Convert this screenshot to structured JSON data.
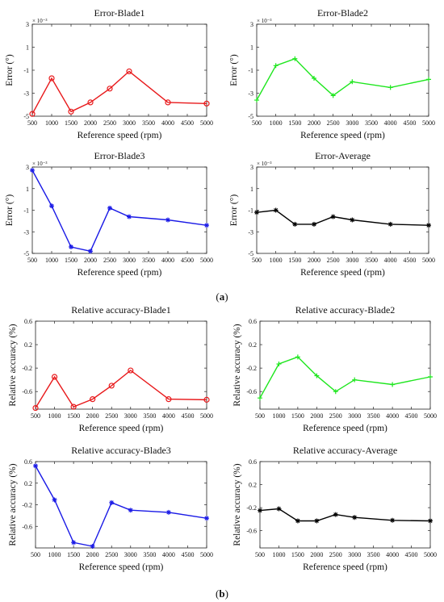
{
  "figure": {
    "group_a_label": {
      "open": "(",
      "letter": "a",
      "close": ")"
    },
    "group_b_label": {
      "open": "(",
      "letter": "b",
      "close": ")"
    }
  },
  "chart_data": [
    {
      "type": "line",
      "group": "a",
      "title": "Error-Blade1",
      "xlabel": "Reference speed (rpm)",
      "ylabel": "Error (°)",
      "y_multiplier": "× 10⁻³",
      "x": [
        500,
        1000,
        1500,
        2000,
        2500,
        3000,
        4000,
        5000
      ],
      "xticks": [
        500,
        1000,
        1500,
        2000,
        2500,
        3000,
        3500,
        4000,
        4500,
        5000
      ],
      "yticks": [
        -5,
        -3,
        -1,
        1,
        3
      ],
      "ylim": [
        -5,
        3
      ],
      "xlim": [
        500,
        5000
      ],
      "series": [
        {
          "values": [
            -4.8,
            -1.7,
            -4.6,
            -3.8,
            -2.6,
            -1.1,
            -3.8,
            -3.9
          ],
          "color": "#e8191b",
          "marker": "circle"
        }
      ]
    },
    {
      "type": "line",
      "group": "a",
      "title": "Error-Blade2",
      "xlabel": "Reference speed (rpm)",
      "ylabel": "Error (°)",
      "y_multiplier": "× 10⁻³",
      "x": [
        500,
        1000,
        1500,
        2000,
        2500,
        3000,
        4000,
        5000
      ],
      "xticks": [
        500,
        1000,
        1500,
        2000,
        2500,
        3000,
        3500,
        4000,
        4500,
        5000
      ],
      "yticks": [
        -5,
        -3,
        -1,
        1,
        3
      ],
      "ylim": [
        -5,
        3
      ],
      "xlim": [
        500,
        5000
      ],
      "series": [
        {
          "values": [
            -3.6,
            -0.6,
            0.0,
            -1.7,
            -3.2,
            -2.0,
            -2.5,
            -1.8
          ],
          "color": "#1ee61e",
          "marker": "plus"
        }
      ]
    },
    {
      "type": "line",
      "group": "a",
      "title": "Error-Blade3",
      "xlabel": "Reference speed (rpm)",
      "ylabel": "Error (°)",
      "y_multiplier": "× 10⁻³",
      "x": [
        500,
        1000,
        1500,
        2000,
        2500,
        3000,
        4000,
        5000
      ],
      "xticks": [
        500,
        1000,
        1500,
        2000,
        2500,
        3000,
        3500,
        4000,
        4500,
        5000
      ],
      "yticks": [
        -5,
        -3,
        -1,
        1,
        3
      ],
      "ylim": [
        -5,
        3
      ],
      "xlim": [
        500,
        5000
      ],
      "series": [
        {
          "values": [
            2.7,
            -0.6,
            -4.4,
            -4.8,
            -0.8,
            -1.6,
            -1.9,
            -2.4
          ],
          "color": "#1a1ae6",
          "marker": "star"
        }
      ]
    },
    {
      "type": "line",
      "group": "a",
      "title": "Error-Average",
      "xlabel": "Reference speed (rpm)",
      "ylabel": "Error (°)",
      "y_multiplier": "× 10⁻³",
      "x": [
        500,
        1000,
        1500,
        2000,
        2500,
        3000,
        4000,
        5000
      ],
      "xticks": [
        500,
        1000,
        1500,
        2000,
        2500,
        3000,
        3500,
        4000,
        4500,
        5000
      ],
      "yticks": [
        -5,
        -3,
        -1,
        1,
        3
      ],
      "ylim": [
        -5,
        3
      ],
      "xlim": [
        500,
        5000
      ],
      "series": [
        {
          "values": [
            -1.2,
            -1.0,
            -2.3,
            -2.3,
            -1.6,
            -1.9,
            -2.3,
            -2.4
          ],
          "color": "#000000",
          "marker": "star"
        }
      ]
    },
    {
      "type": "line",
      "group": "b",
      "title": "Relative accuracy-Blade1",
      "xlabel": "Reference speed (rpm)",
      "ylabel": "Relative accuracy (%)",
      "x": [
        500,
        1000,
        1500,
        2000,
        2500,
        3000,
        4000,
        5000
      ],
      "xticks": [
        500,
        1000,
        1500,
        2000,
        2500,
        3000,
        3500,
        4000,
        4500,
        5000
      ],
      "yticks": [
        -0.6,
        -0.2,
        0.2,
        0.6
      ],
      "ylim": [
        -0.9,
        0.6
      ],
      "xlim": [
        500,
        5000
      ],
      "series": [
        {
          "values": [
            -0.88,
            -0.35,
            -0.86,
            -0.73,
            -0.5,
            -0.24,
            -0.73,
            -0.74
          ],
          "color": "#e8191b",
          "marker": "circle"
        }
      ]
    },
    {
      "type": "line",
      "group": "b",
      "title": "Relative accuracy-Blade2",
      "xlabel": "Reference speed (rpm)",
      "ylabel": "Relative accuracy (%)",
      "x": [
        500,
        1000,
        1500,
        2000,
        2500,
        3000,
        4000,
        5000
      ],
      "xticks": [
        500,
        1000,
        1500,
        2000,
        2500,
        3000,
        3500,
        4000,
        4500,
        5000
      ],
      "yticks": [
        -0.6,
        -0.2,
        0.2,
        0.6
      ],
      "ylim": [
        -0.9,
        0.6
      ],
      "xlim": [
        500,
        5000
      ],
      "series": [
        {
          "values": [
            -0.71,
            -0.13,
            -0.01,
            -0.33,
            -0.6,
            -0.4,
            -0.48,
            -0.35
          ],
          "color": "#1ee61e",
          "marker": "plus"
        }
      ]
    },
    {
      "type": "line",
      "group": "b",
      "title": "Relative accuracy-Blade3",
      "xlabel": "Reference speed (rpm)",
      "ylabel": "Relative accuracy (%)",
      "x": [
        500,
        1000,
        1500,
        2000,
        2500,
        3000,
        4000,
        5000
      ],
      "xticks": [
        500,
        1000,
        1500,
        2000,
        2500,
        3000,
        3500,
        4000,
        4500,
        5000
      ],
      "yticks": [
        -0.6,
        -0.2,
        0.2,
        0.6
      ],
      "ylim": [
        -1.0,
        0.6
      ],
      "xlim": [
        500,
        5000
      ],
      "series": [
        {
          "values": [
            0.52,
            -0.11,
            -0.9,
            -0.97,
            -0.16,
            -0.3,
            -0.34,
            -0.45
          ],
          "color": "#1a1ae6",
          "marker": "star"
        }
      ]
    },
    {
      "type": "line",
      "group": "b",
      "title": "Relative accuracy-Average",
      "xlabel": "Reference speed (rpm)",
      "ylabel": "Relative accuracy (%)",
      "x": [
        500,
        1000,
        1500,
        2000,
        2500,
        3000,
        4000,
        5000
      ],
      "xticks": [
        500,
        1000,
        1500,
        2000,
        2500,
        3000,
        3500,
        4000,
        4500,
        5000
      ],
      "yticks": [
        -0.6,
        -0.2,
        0.2,
        0.6
      ],
      "ylim": [
        -0.9,
        0.6
      ],
      "xlim": [
        500,
        5000
      ],
      "series": [
        {
          "values": [
            -0.25,
            -0.22,
            -0.43,
            -0.43,
            -0.32,
            -0.37,
            -0.42,
            -0.43
          ],
          "color": "#000000",
          "marker": "star"
        }
      ]
    }
  ]
}
